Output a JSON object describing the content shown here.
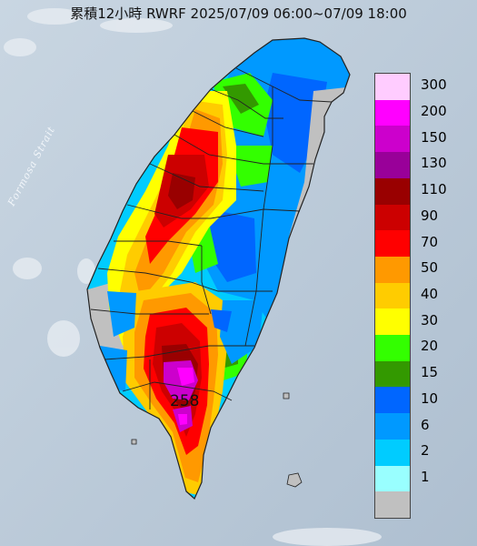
{
  "title": "累積12小時 RWRF 2025/07/09 06:00~07/09 18:00",
  "strait_label": "Formosa Strait",
  "max_value_label": "258",
  "legend": {
    "levels": [
      {
        "label": "300",
        "color": "#ffccff"
      },
      {
        "label": "200",
        "color": "#ff00ff"
      },
      {
        "label": "150",
        "color": "#cc00cc"
      },
      {
        "label": "130",
        "color": "#990099"
      },
      {
        "label": "110",
        "color": "#990000"
      },
      {
        "label": "90",
        "color": "#cc0000"
      },
      {
        "label": "70",
        "color": "#ff0000"
      },
      {
        "label": "50",
        "color": "#ff9900"
      },
      {
        "label": "40",
        "color": "#ffcc00"
      },
      {
        "label": "30",
        "color": "#ffff00"
      },
      {
        "label": "20",
        "color": "#33ff00"
      },
      {
        "label": "15",
        "color": "#339900"
      },
      {
        "label": "10",
        "color": "#0066ff"
      },
      {
        "label": "6",
        "color": "#0099ff"
      },
      {
        "label": "2",
        "color": "#00ccff"
      },
      {
        "label": "1",
        "color": "#99ffff"
      },
      {
        "label": "",
        "color": "#c0c0c0"
      }
    ]
  }
}
